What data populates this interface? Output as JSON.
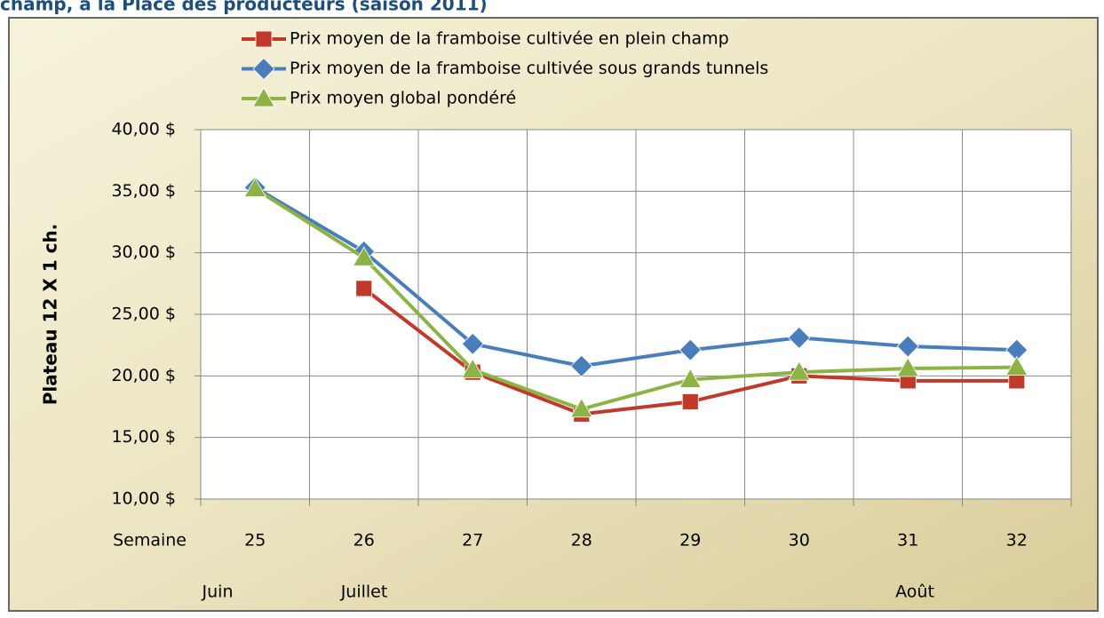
{
  "chart_data": {
    "type": "line",
    "title": "champ, à la Place des producteurs (saison 2011)",
    "y_label": "Plateau 12 X 1 ch.",
    "x_label": "Semaine",
    "categories": [
      "25",
      "26",
      "27",
      "28",
      "29",
      "30",
      "31",
      "32"
    ],
    "annotations": [
      "Juin",
      "Juillet",
      "Août"
    ],
    "series": [
      {
        "name": "Prix moyen de la framboise cultivée en plein champ",
        "color": "#c0392b",
        "marker": "square",
        "values": [
          null,
          27.1,
          20.3,
          16.9,
          17.9,
          20.0,
          19.6,
          19.6
        ]
      },
      {
        "name": "Prix moyen de la framboise cultivée sous grands tunnels",
        "color": "#4a7ebb",
        "marker": "diamond",
        "values": [
          35.3,
          30.1,
          22.6,
          20.8,
          22.1,
          23.1,
          22.4,
          22.1
        ]
      },
      {
        "name": "Prix moyen global pondéré",
        "color": "#8db346",
        "marker": "triangle",
        "values": [
          35.2,
          29.6,
          20.5,
          17.3,
          19.7,
          20.3,
          20.6,
          20.7
        ]
      }
    ],
    "ylim": [
      10,
      40
    ],
    "yticks": [
      {
        "value": 10,
        "label": "10,00 $"
      },
      {
        "value": 15,
        "label": "15,00 $"
      },
      {
        "value": 20,
        "label": "20,00 $"
      },
      {
        "value": 25,
        "label": "25,00 $"
      },
      {
        "value": 30,
        "label": "30,00 $"
      },
      {
        "value": 35,
        "label": "35,00 $"
      },
      {
        "value": 40,
        "label": "40,00 $"
      }
    ],
    "grid": true
  }
}
